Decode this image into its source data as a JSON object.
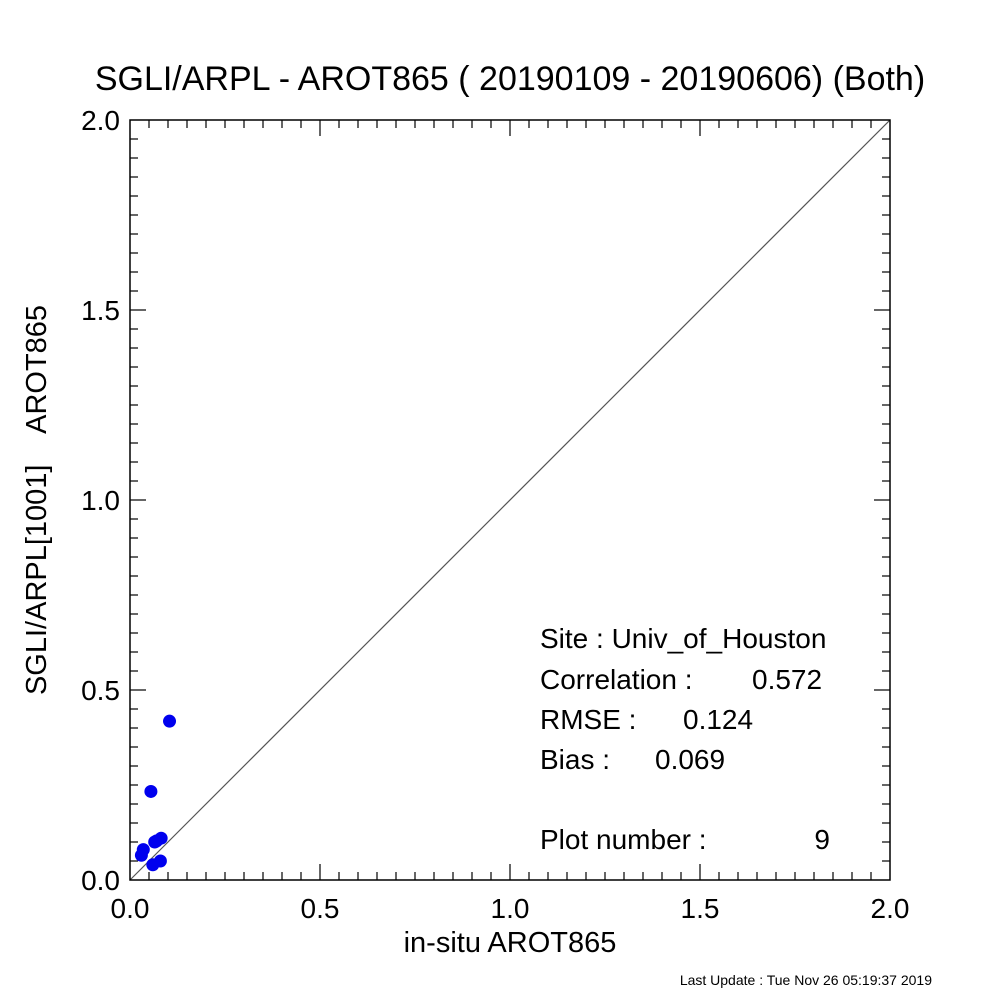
{
  "chart_data": {
    "type": "scatter",
    "title": "SGLI/ARPL - AROT865 ( 20190109 - 20190606) (Both)",
    "xlabel": "in-situ AROT865",
    "ylabel": "SGLI/ARPL[1001]    AROT865",
    "xlim": [
      0.0,
      2.0
    ],
    "ylim": [
      0.0,
      2.0
    ],
    "x_ticks": [
      "0.0",
      "0.5",
      "1.0",
      "1.5",
      "2.0"
    ],
    "y_ticks": [
      "0.0",
      "0.5",
      "1.0",
      "1.5",
      "2.0"
    ],
    "tick_values": [
      0.0,
      0.5,
      1.0,
      1.5,
      2.0
    ],
    "grid": false,
    "reference_line": "1:1",
    "point_color": "#0000ee",
    "line_color": "#555555",
    "series": [
      {
        "points": [
          {
            "x": 0.104,
            "y": 0.418
          },
          {
            "x": 0.055,
            "y": 0.233
          },
          {
            "x": 0.03,
            "y": 0.065
          },
          {
            "x": 0.035,
            "y": 0.08
          },
          {
            "x": 0.06,
            "y": 0.04
          },
          {
            "x": 0.07,
            "y": 0.103
          },
          {
            "x": 0.082,
            "y": 0.11
          },
          {
            "x": 0.08,
            "y": 0.05
          },
          {
            "x": 0.065,
            "y": 0.1
          }
        ]
      }
    ],
    "annotations": {
      "site": "Site : Univ_of_Houston",
      "correlation_label": "Correlation :",
      "correlation_value": "0.572",
      "rmse_label": "RMSE :",
      "rmse_value": "0.124",
      "bias_label": "Bias :",
      "bias_value": "0.069",
      "plot_number_label": "Plot number :",
      "plot_number_value": "9"
    }
  },
  "footer": "Last Update : Tue Nov 26 05:19:37 2019"
}
